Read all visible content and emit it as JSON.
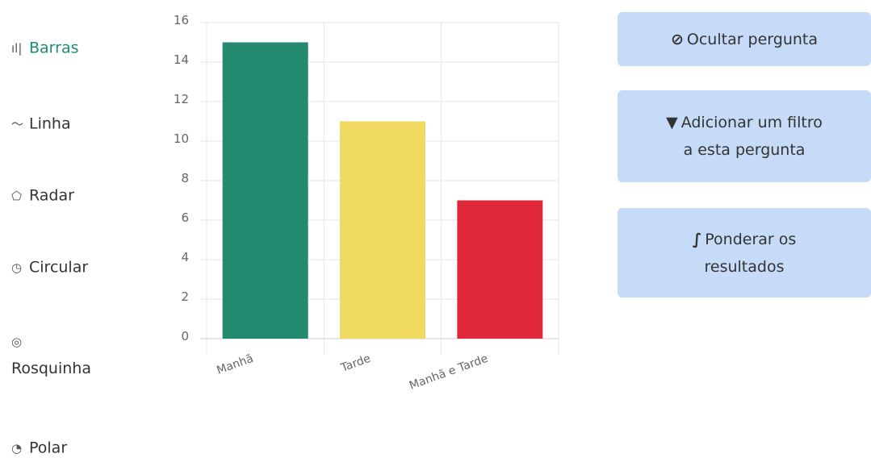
{
  "chart_types": [
    {
      "icon": "bar-chart-icon",
      "glyph": "ıl|",
      "label": "Barras",
      "active": true
    },
    {
      "icon": "line-chart-icon",
      "glyph": "〜",
      "label": "Linha",
      "active": false
    },
    {
      "icon": "radar-chart-icon",
      "glyph": "⬠",
      "label": "Radar",
      "active": false
    },
    {
      "icon": "pie-chart-icon",
      "glyph": "◷",
      "label": "Circular",
      "active": false
    },
    {
      "icon": "donut-chart-icon",
      "glyph": "◎",
      "label": "Rosquinha",
      "active": false
    },
    {
      "icon": "polar-chart-icon",
      "glyph": "◔",
      "label": "Polar",
      "active": false
    }
  ],
  "actions": {
    "hide": {
      "icon": "eye-slash-icon",
      "glyph": "🚫",
      "label": "Ocultar pergunta"
    },
    "filter": {
      "icon": "filter-icon",
      "glyph": "▼",
      "label_line1": "Adicionar um filtro",
      "label_line2": "a esta pergunta"
    },
    "weight": {
      "icon": "integral-icon",
      "glyph": "∫",
      "label_line1": "Ponderar os",
      "label_line2": "resultados"
    }
  },
  "chart_data": {
    "type": "bar",
    "categories": [
      "Manhã",
      "Tarde",
      "Manhã e Tarde"
    ],
    "values": [
      15,
      11,
      7
    ],
    "colors": [
      "#238a6f",
      "#efd960",
      "#e1283a"
    ],
    "ylim": [
      0,
      16
    ],
    "yticks": [
      0,
      2,
      4,
      6,
      8,
      10,
      12,
      14,
      16
    ],
    "grid": true,
    "title": "",
    "xlabel": "",
    "ylabel": ""
  }
}
